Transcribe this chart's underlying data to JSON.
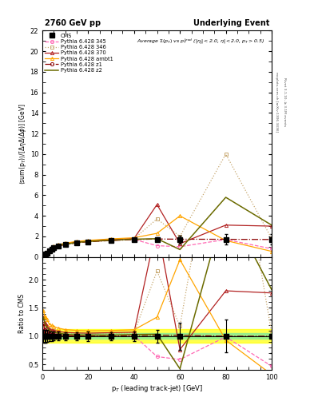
{
  "title_left": "2760 GeV pp",
  "title_right": "Underlying Event",
  "ylabel_main": "$\\langle$sum(p$_T$)$\\rangle$/$[\\Delta\\eta\\Delta(\\Delta\\phi)]$ [GeV]",
  "ylabel_ratio": "Ratio to CMS",
  "xlabel": "p$_T$ (leading track-jet) [GeV]",
  "ylim_main": [
    0,
    22
  ],
  "ylim_ratio": [
    0.4,
    2.4
  ],
  "xlim": [
    0,
    100
  ],
  "right_label": "Rivet 3.1.10, ≥ 3.1M events",
  "right_label2": "mcplots.cern.ch [arXiv:1306.3436]",
  "cms_x": [
    0.5,
    1.0,
    1.5,
    2.0,
    3.0,
    4.0,
    5.0,
    7.0,
    10.0,
    15.0,
    20.0,
    30.0,
    40.0,
    50.0,
    60.0,
    80.0,
    100.0
  ],
  "cms_y": [
    0.09,
    0.17,
    0.27,
    0.38,
    0.57,
    0.74,
    0.88,
    1.05,
    1.2,
    1.38,
    1.48,
    1.6,
    1.68,
    1.72,
    1.7,
    1.72,
    1.7
  ],
  "cms_yerr": [
    0.01,
    0.02,
    0.03,
    0.04,
    0.05,
    0.06,
    0.07,
    0.08,
    0.09,
    0.1,
    0.12,
    0.12,
    0.15,
    0.2,
    0.4,
    0.5,
    0.5
  ],
  "p345_x": [
    0.5,
    1.0,
    1.5,
    2.0,
    3.0,
    4.0,
    5.0,
    7.0,
    10.0,
    15.0,
    20.0,
    30.0,
    40.0,
    50.0,
    60.0,
    80.0,
    100.0
  ],
  "p345_y": [
    0.1,
    0.19,
    0.3,
    0.42,
    0.61,
    0.78,
    0.92,
    1.08,
    1.22,
    1.4,
    1.5,
    1.62,
    1.7,
    1.1,
    1.0,
    1.7,
    0.8
  ],
  "p345_color": "#FF69B4",
  "p345_label": "Pythia 6.428 345",
  "p345_ls": "--",
  "p345_marker": "o",
  "p346_x": [
    0.5,
    1.0,
    1.5,
    2.0,
    3.0,
    4.0,
    5.0,
    7.0,
    10.0,
    15.0,
    20.0,
    30.0,
    40.0,
    50.0,
    60.0,
    80.0,
    100.0
  ],
  "p346_y": [
    0.11,
    0.2,
    0.32,
    0.44,
    0.63,
    0.81,
    0.96,
    1.13,
    1.27,
    1.44,
    1.54,
    1.67,
    1.78,
    3.7,
    2.0,
    10.0,
    1.8
  ],
  "p346_color": "#C8A870",
  "p346_label": "Pythia 6.428 346",
  "p346_ls": ":",
  "p346_marker": "s",
  "p370_x": [
    0.5,
    1.0,
    1.5,
    2.0,
    3.0,
    4.0,
    5.0,
    7.0,
    10.0,
    15.0,
    20.0,
    30.0,
    40.0,
    50.0,
    60.0,
    80.0,
    100.0
  ],
  "p370_y": [
    0.12,
    0.21,
    0.33,
    0.45,
    0.64,
    0.82,
    0.97,
    1.14,
    1.28,
    1.46,
    1.56,
    1.7,
    1.8,
    5.1,
    1.3,
    3.1,
    3.0
  ],
  "p370_color": "#B22222",
  "p370_label": "Pythia 6.428 370",
  "p370_ls": "-",
  "p370_marker": "^",
  "pambt1_x": [
    0.5,
    1.0,
    1.5,
    2.0,
    3.0,
    4.0,
    5.0,
    7.0,
    10.0,
    15.0,
    20.0,
    30.0,
    40.0,
    50.0,
    60.0,
    80.0,
    100.0
  ],
  "pambt1_y": [
    0.13,
    0.23,
    0.36,
    0.49,
    0.69,
    0.88,
    1.03,
    1.2,
    1.34,
    1.52,
    1.62,
    1.76,
    1.87,
    2.3,
    4.0,
    1.6,
    0.55
  ],
  "pambt1_color": "#FFA500",
  "pambt1_label": "Pythia 6.428 ambt1",
  "pambt1_ls": "-",
  "pambt1_marker": "^",
  "pz1_x": [
    0.5,
    1.0,
    1.5,
    2.0,
    3.0,
    4.0,
    5.0,
    7.0,
    10.0,
    15.0,
    20.0,
    30.0,
    40.0,
    50.0,
    60.0,
    80.0,
    100.0
  ],
  "pz1_y": [
    0.11,
    0.19,
    0.29,
    0.41,
    0.59,
    0.76,
    0.9,
    1.07,
    1.21,
    1.38,
    1.48,
    1.6,
    1.69,
    1.75,
    1.73,
    1.72,
    1.7
  ],
  "pz1_color": "#8B0000",
  "pz1_label": "Pythia 6.428 z1",
  "pz1_ls": "-.",
  "pz1_marker": "o",
  "pz2_x": [
    0.5,
    1.0,
    1.5,
    2.0,
    3.0,
    4.0,
    5.0,
    7.0,
    10.0,
    15.0,
    20.0,
    30.0,
    40.0,
    50.0,
    60.0,
    80.0,
    100.0
  ],
  "pz2_y": [
    0.12,
    0.21,
    0.32,
    0.44,
    0.63,
    0.8,
    0.94,
    1.11,
    1.24,
    1.41,
    1.51,
    1.63,
    1.73,
    1.78,
    0.72,
    5.8,
    3.1
  ],
  "pz2_color": "#6B6B00",
  "pz2_label": "Pythia 6.428 z2",
  "pz2_ls": "-",
  "pz2_marker": null,
  "ratio_band_inner": 0.05,
  "ratio_band_outer": 0.12
}
